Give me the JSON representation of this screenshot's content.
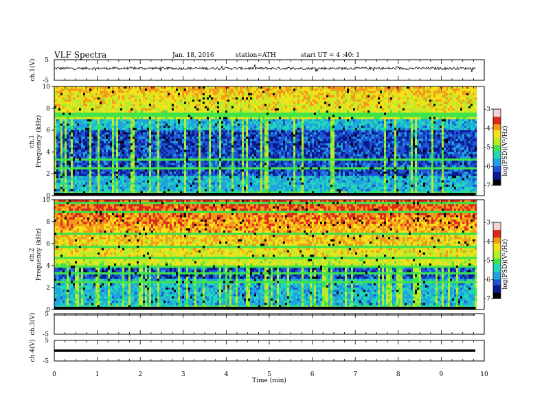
{
  "header": {
    "title": "VLF  Spectra",
    "date": "Jan. 18, 2016",
    "station": "station=ATH",
    "start": "start  UT  =   4  :40: 1"
  },
  "chart_data": [
    {
      "type": "line",
      "name": "ch1-waveform",
      "ylabel": "ch.1(V)",
      "ylim": [
        -5,
        5
      ],
      "yticks": [
        "5",
        "-5"
      ],
      "xlim": [
        0,
        10
      ],
      "data_until_min": 9.8,
      "approx_level": 0.8,
      "approx_spread": 0.6
    },
    {
      "type": "heatmap",
      "name": "ch1-spectrogram",
      "channel_label": "ch.1",
      "ylabel": "Frequency  (kHz)",
      "ylim": [
        0,
        10
      ],
      "yticks": [
        "0",
        "2",
        "4",
        "6",
        "8",
        "10"
      ],
      "xlim": [
        0,
        10
      ],
      "data_until_min": 9.8,
      "colorbar_label": "log(PSD)(V²/Hz)",
      "colorbar_range": [
        -7,
        -3
      ],
      "colorbar_ticks": [
        "-3",
        "-4",
        "-5",
        "-6",
        "-7"
      ],
      "dark_band_khz": [
        1.8,
        6.0
      ],
      "bright_band_khz": [
        7.0,
        10.0
      ]
    },
    {
      "type": "heatmap",
      "name": "ch2-spectrogram",
      "channel_label": "ch.2",
      "ylabel": "Frequency  (kHz)",
      "ylim": [
        0,
        10
      ],
      "yticks": [
        "0",
        "2",
        "4",
        "6",
        "8",
        "10"
      ],
      "xlim": [
        0,
        10
      ],
      "data_until_min": 9.8,
      "colorbar_label": "log(PSD)(V²/Hz)",
      "colorbar_range": [
        -7,
        -3
      ],
      "colorbar_ticks": [
        "-3",
        "-4",
        "-5",
        "-6",
        "-7"
      ],
      "dark_band_khz": [
        2.8,
        3.8
      ],
      "bright_band_khz": [
        4.0,
        10.0
      ]
    },
    {
      "type": "line",
      "name": "ch3-waveform",
      "ylabel": "ch.3(V)",
      "ylim": [
        -5,
        5
      ],
      "yticks": [
        "5",
        "-5"
      ],
      "xlim": [
        0,
        10
      ],
      "data_until_min": 9.8,
      "approx_level": 4.9,
      "approx_spread": 0.0
    },
    {
      "type": "line",
      "name": "ch4-waveform",
      "ylabel": "ch.4(V)",
      "ylim": [
        -5,
        5
      ],
      "yticks": [
        "5",
        "-5"
      ],
      "xlim": [
        0,
        10
      ],
      "data_until_min": 9.8,
      "approx_level": 0.0,
      "approx_spread": 0.15
    }
  ],
  "xaxis": {
    "label": "Time  (min)",
    "ticks": [
      "0",
      "1",
      "2",
      "3",
      "4",
      "5",
      "6",
      "7",
      "8",
      "9",
      "10"
    ]
  },
  "colors": {
    "colormap": [
      "#000000",
      "#0a1a8c",
      "#1f52d6",
      "#1fa3e0",
      "#22d6b8",
      "#3fe34a",
      "#b8ec2a",
      "#f3e21a",
      "#f39a1a",
      "#dd2a1a",
      "#f4d2d2"
    ]
  }
}
